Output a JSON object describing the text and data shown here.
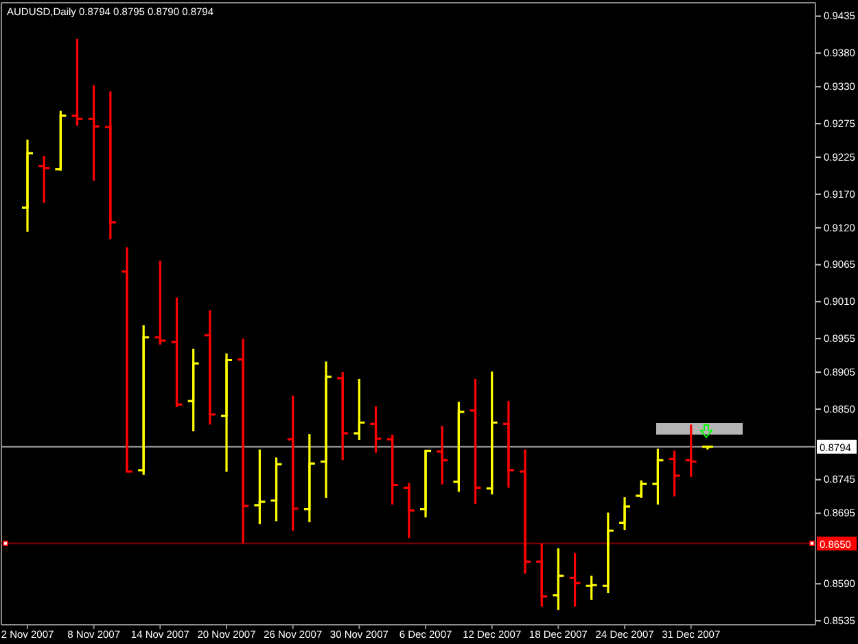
{
  "chart_data": {
    "type": "candlestick",
    "title": "AUDUSD,Daily 0.8794 0.8795 0.8790 0.8794",
    "categories": [
      "2 Nov 2007",
      null,
      null,
      null,
      "8 Nov 2007",
      null,
      null,
      null,
      "14 Nov 2007",
      null,
      null,
      null,
      "20 Nov 2007",
      null,
      null,
      null,
      "26 Nov 2007",
      null,
      null,
      null,
      "30 Nov 2007",
      null,
      null,
      null,
      "6 Dec 2007",
      null,
      null,
      null,
      "12 Dec 2007",
      null,
      null,
      null,
      "18 Dec 2007",
      null,
      null,
      null,
      "24 Dec 2007",
      null,
      null,
      null,
      "31 Dec 2007",
      null,
      null,
      null,
      null,
      null,
      null,
      null
    ],
    "ohlc": [
      [
        0.915,
        0.9251,
        0.9114,
        0.9231
      ],
      [
        0.9212,
        0.9227,
        0.9157,
        0.9209
      ],
      [
        0.9207,
        0.9294,
        0.9205,
        0.9287
      ],
      [
        0.9287,
        0.9401,
        0.9272,
        0.9282
      ],
      [
        0.9282,
        0.9332,
        0.919,
        0.9271
      ],
      [
        0.927,
        0.9323,
        0.9103,
        0.9128
      ],
      [
        0.9055,
        0.9091,
        0.8757,
        0.8757
      ],
      [
        0.8759,
        0.8975,
        0.8752,
        0.8957
      ],
      [
        0.8957,
        0.9071,
        0.8946,
        0.8952
      ],
      [
        0.895,
        0.9016,
        0.8853,
        0.8857
      ],
      [
        0.8862,
        0.894,
        0.8817,
        0.8918
      ],
      [
        0.896,
        0.8997,
        0.8827,
        0.8842
      ],
      [
        0.884,
        0.8933,
        0.8757,
        0.8923
      ],
      [
        0.8924,
        0.8955,
        0.865,
        0.8706
      ],
      [
        0.8707,
        0.879,
        0.8679,
        0.8712
      ],
      [
        0.8714,
        0.8778,
        0.8683,
        0.8768
      ],
      [
        0.8805,
        0.887,
        0.8669,
        0.8702
      ],
      [
        0.8701,
        0.8813,
        0.8682,
        0.8769
      ],
      [
        0.8772,
        0.8921,
        0.8718,
        0.8898
      ],
      [
        0.8896,
        0.8905,
        0.8774,
        0.8814
      ],
      [
        0.8814,
        0.8895,
        0.8804,
        0.883
      ],
      [
        0.8828,
        0.8854,
        0.8785,
        0.8806
      ],
      [
        0.8805,
        0.8812,
        0.8708,
        0.8737
      ],
      [
        0.8733,
        0.874,
        0.8658,
        0.8699
      ],
      [
        0.8701,
        0.8789,
        0.8689,
        0.8788
      ],
      [
        0.8787,
        0.8825,
        0.8738,
        0.8774
      ],
      [
        0.8742,
        0.8861,
        0.8727,
        0.8846
      ],
      [
        0.8848,
        0.8895,
        0.8709,
        0.8733
      ],
      [
        0.8732,
        0.8906,
        0.8723,
        0.883
      ],
      [
        0.8828,
        0.8862,
        0.8733,
        0.8759
      ],
      [
        0.8757,
        0.879,
        0.8605,
        0.8623
      ],
      [
        0.8623,
        0.865,
        0.8556,
        0.8571
      ],
      [
        0.8573,
        0.8643,
        0.8551,
        0.8602
      ],
      [
        0.8599,
        0.8636,
        0.8556,
        0.8591
      ],
      [
        0.8587,
        0.8602,
        0.8566,
        0.8588
      ],
      [
        0.8587,
        0.8696,
        0.8576,
        0.8669
      ],
      [
        0.8681,
        0.8719,
        0.867,
        0.8705
      ],
      [
        0.8721,
        0.8744,
        0.8718,
        0.8739
      ],
      [
        0.8739,
        0.8791,
        0.8708,
        0.8774
      ],
      [
        0.8776,
        0.8788,
        0.872,
        0.8751
      ],
      [
        0.8774,
        0.8827,
        0.8749,
        0.8772
      ],
      [
        0.8794,
        0.8795,
        0.879,
        0.8794
      ],
      null,
      null,
      null,
      null,
      null,
      null
    ],
    "colors": [
      "#ffff00",
      "#ff0000",
      "#ffff00",
      "#ff0000",
      "#ff0000",
      "#ff0000",
      "#ff0000",
      "#ffff00",
      "#ff0000",
      "#ff0000",
      "#ffff00",
      "#ff0000",
      "#ffff00",
      "#ff0000",
      "#ffff00",
      "#ffff00",
      "#ff0000",
      "#ffff00",
      "#ffff00",
      "#ff0000",
      "#ffff00",
      "#ff0000",
      "#ff0000",
      "#ff0000",
      "#ffff00",
      "#ff0000",
      "#ffff00",
      "#ff0000",
      "#ffff00",
      "#ff0000",
      "#ff0000",
      "#ff0000",
      "#ffff00",
      "#ff0000",
      "#ffff00",
      "#ffff00",
      "#ffff00",
      "#ffff00",
      "#ffff00",
      "#ff0000",
      "#ff0000",
      "#ffff00",
      null,
      null,
      null,
      null,
      null,
      null
    ],
    "ylim": [
      0.8529,
      0.9455
    ],
    "yticks": [
      0.9435,
      {
        "value": 0.938,
        "label": "0.9380"
      },
      {
        "value": 0.933,
        "label": "0.9330"
      },
      0.9275,
      0.9225,
      {
        "value": 0.917,
        "label": "0.9170"
      },
      {
        "value": 0.912,
        "label": "0.9120"
      },
      0.9065,
      {
        "value": 0.901,
        "label": "0.9010"
      },
      0.8955,
      0.8905,
      {
        "value": 0.885,
        "label": "0.8850"
      },
      0.8745,
      0.8695,
      {
        "value": 0.859,
        "label": "0.8590"
      },
      0.8535
    ],
    "ref_lines": [
      {
        "axis": "y",
        "value": 0.8794,
        "label": "0.8794",
        "color": "#a0a0a0"
      },
      {
        "axis": "y",
        "value": 0.865,
        "label": "0.8650",
        "color": "#800000"
      }
    ]
  }
}
